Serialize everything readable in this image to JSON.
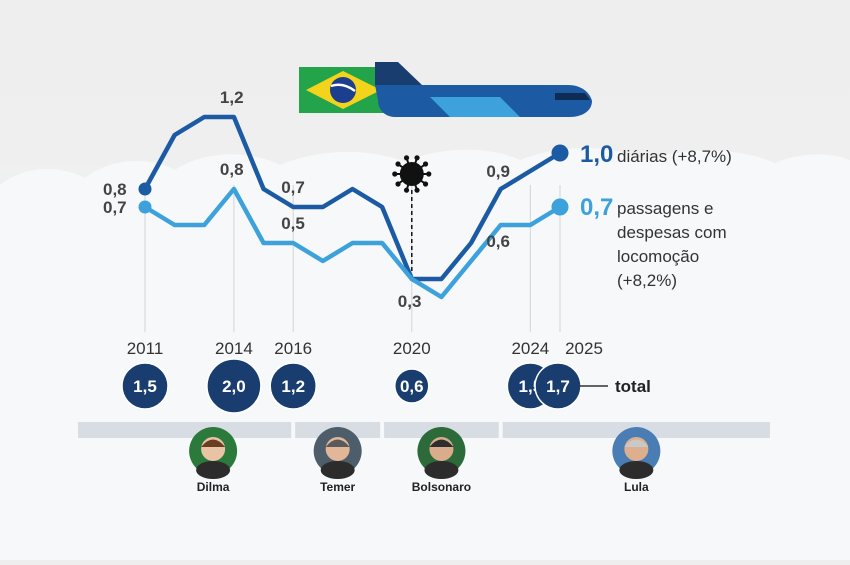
{
  "colors": {
    "dark_blue": "#1c5ba4",
    "light_blue": "#3da1dc",
    "navy": "#1a3d70",
    "flag_green": "#23a34a",
    "flag_yellow": "#f4d31c",
    "flag_blue": "#1b3f8e",
    "virus": "#111111"
  },
  "icons": [
    "brazil-flag-icon",
    "airplane-icon",
    "virus-icon"
  ],
  "chart_data": {
    "type": "line",
    "x_ticks": [
      "2011",
      "2014",
      "2016",
      "2020",
      "2024",
      "2025"
    ],
    "xlim": [
      2011,
      2025
    ],
    "ylim": [
      0.2,
      1.3
    ],
    "series": [
      {
        "name": "diárias (+8,7%)",
        "color": "#1c5ba4",
        "x": [
          2011,
          2012,
          2013,
          2014,
          2015,
          2016,
          2017,
          2018,
          2019,
          2020,
          2021,
          2022,
          2023,
          2024,
          2025
        ],
        "y": [
          0.8,
          1.1,
          1.2,
          1.2,
          0.8,
          0.7,
          0.7,
          0.8,
          0.7,
          0.3,
          0.3,
          0.5,
          0.8,
          0.9,
          1.0
        ]
      },
      {
        "name": "passagens e despesas com locomoção (+8,2%)",
        "color": "#3da1dc",
        "x": [
          2011,
          2012,
          2013,
          2014,
          2015,
          2016,
          2017,
          2018,
          2019,
          2020,
          2021,
          2022,
          2023,
          2024,
          2025
        ],
        "y": [
          0.7,
          0.6,
          0.6,
          0.8,
          0.5,
          0.5,
          0.4,
          0.5,
          0.5,
          0.3,
          0.2,
          0.4,
          0.6,
          0.6,
          0.7
        ]
      }
    ],
    "point_labels": [
      {
        "series": 0,
        "x": 2011,
        "text": "0,8"
      },
      {
        "series": 0,
        "x": 2014,
        "text": "1,2"
      },
      {
        "series": 0,
        "x": 2016,
        "text": "0,7"
      },
      {
        "series": 0,
        "x": 2024,
        "text": "0,9"
      },
      {
        "series": 1,
        "x": 2011,
        "text": "0,7"
      },
      {
        "series": 1,
        "x": 2014,
        "text": "0,8"
      },
      {
        "series": 1,
        "x": 2016,
        "text": "0,5"
      },
      {
        "series": 1,
        "x": 2020,
        "text": "0,3"
      },
      {
        "series": 1,
        "x": 2024,
        "text": "0,6"
      }
    ],
    "legend": [
      {
        "value": "1,0",
        "lines": [
          "diárias (+8,7%)"
        ]
      },
      {
        "value": "0,7",
        "lines": [
          "passagens e",
          "despesas com",
          "locomoção",
          "(+8,2%)"
        ]
      }
    ],
    "event_marker": {
      "x": 2020,
      "icon": "virus-icon"
    },
    "totals": [
      {
        "x": 2011,
        "value": "1,5"
      },
      {
        "x": 2014,
        "value": "2,0"
      },
      {
        "x": 2016,
        "value": "1,2"
      },
      {
        "x": 2020,
        "value": "0,6"
      },
      {
        "x": 2024,
        "value": "1,5"
      },
      {
        "x": 2025,
        "value": "1,7"
      }
    ],
    "totals_label": "total",
    "presidents": [
      {
        "name": "Dilma",
        "start": 2011,
        "end": 2016
      },
      {
        "name": "Temer",
        "start": 2016,
        "end": 2019
      },
      {
        "name": "Bolsonaro",
        "start": 2019,
        "end": 2023
      },
      {
        "name": "Lula",
        "start": 2023,
        "end": 2026
      }
    ]
  }
}
